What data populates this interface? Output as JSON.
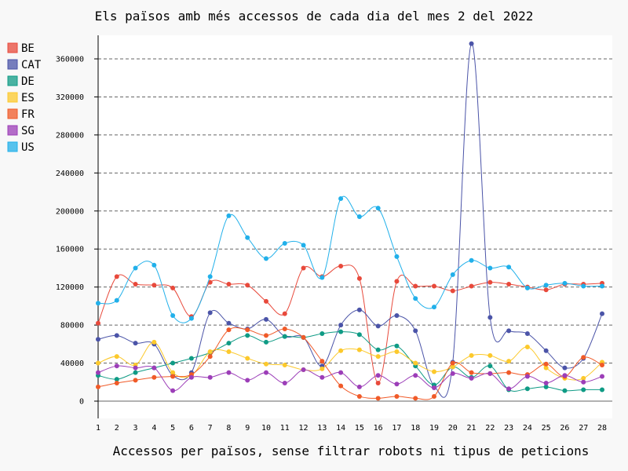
{
  "chart_data": {
    "type": "line",
    "title": "Els països amb més accessos de cada dia del mes 2 del 2022",
    "xlabel": "Accessos per països, sense filtrar robots ni tipus de peticions",
    "ylabel": "",
    "categories": [
      "1",
      "2",
      "3",
      "4",
      "5",
      "6",
      "7",
      "8",
      "9",
      "10",
      "11",
      "12",
      "13",
      "14",
      "15",
      "16",
      "17",
      "18",
      "19",
      "20",
      "21",
      "22",
      "23",
      "24",
      "25",
      "26",
      "27",
      "28"
    ],
    "ylim": [
      0,
      390000
    ],
    "yticks": [
      0,
      40000,
      80000,
      120000,
      160000,
      200000,
      240000,
      280000,
      320000,
      360000
    ],
    "ytick_labels": [
      "0",
      "40000",
      "80000",
      "120000",
      "160000",
      "200000",
      "240000",
      "280000",
      "320000",
      "360000"
    ],
    "grid": "horizontal dashed",
    "legend_position": "left",
    "series": [
      {
        "name": "BE",
        "color": "#e8493b",
        "values": [
          82000,
          131000,
          123000,
          122000,
          119000,
          89000,
          125000,
          123000,
          122000,
          105000,
          92000,
          140000,
          131000,
          142000,
          129000,
          19000,
          126000,
          121000,
          121000,
          116000,
          121000,
          125000,
          123000,
          120000,
          117000,
          123000,
          123000,
          124000
        ]
      },
      {
        "name": "CAT",
        "color": "#4b54a8",
        "values": [
          65000,
          69000,
          61000,
          60000,
          27000,
          30000,
          93000,
          82000,
          76000,
          86000,
          68000,
          67000,
          37000,
          80000,
          96000,
          79000,
          90000,
          74000,
          16000,
          41000,
          376000,
          88000,
          74000,
          71000,
          53000,
          35000,
          45000,
          92000
        ]
      },
      {
        "name": "DE",
        "color": "#0f9b85",
        "values": [
          27000,
          23000,
          30000,
          35000,
          40000,
          45000,
          51000,
          61000,
          69000,
          62000,
          68000,
          67000,
          71000,
          73000,
          70000,
          54000,
          58000,
          37000,
          17000,
          36000,
          25000,
          37000,
          12000,
          13000,
          15000,
          11000,
          12000,
          12000
        ]
      },
      {
        "name": "ES",
        "color": "#fcc92c",
        "values": [
          40000,
          47000,
          38000,
          62000,
          30000,
          27000,
          52000,
          52000,
          45000,
          39000,
          38000,
          33000,
          34000,
          53000,
          54000,
          47000,
          52000,
          40000,
          31000,
          36000,
          48000,
          48000,
          42000,
          57000,
          35000,
          24000,
          24000,
          41000
        ]
      },
      {
        "name": "FR",
        "color": "#f05a28",
        "values": [
          15000,
          19000,
          22000,
          25000,
          26000,
          28000,
          47000,
          75000,
          75000,
          69000,
          76000,
          67000,
          42000,
          16000,
          5000,
          3000,
          5000,
          3000,
          5000,
          40000,
          30000,
          29000,
          30000,
          28000,
          39000,
          26000,
          46000,
          38000
        ]
      },
      {
        "name": "SG",
        "color": "#9c3eb8",
        "values": [
          30000,
          37000,
          35000,
          35000,
          11000,
          25000,
          25000,
          30000,
          22000,
          30000,
          19000,
          33000,
          25000,
          30000,
          15000,
          27000,
          18000,
          27000,
          14000,
          29000,
          24000,
          29000,
          13000,
          26000,
          19000,
          27000,
          20000,
          26000
        ]
      },
      {
        "name": "US",
        "color": "#21b0ea",
        "values": [
          103000,
          106000,
          140000,
          143000,
          90000,
          87000,
          131000,
          195000,
          172000,
          150000,
          166000,
          164000,
          130000,
          213000,
          194000,
          203000,
          152000,
          108000,
          99000,
          133000,
          148000,
          140000,
          141000,
          119000,
          122000,
          124000,
          121000,
          121000
        ]
      }
    ]
  }
}
